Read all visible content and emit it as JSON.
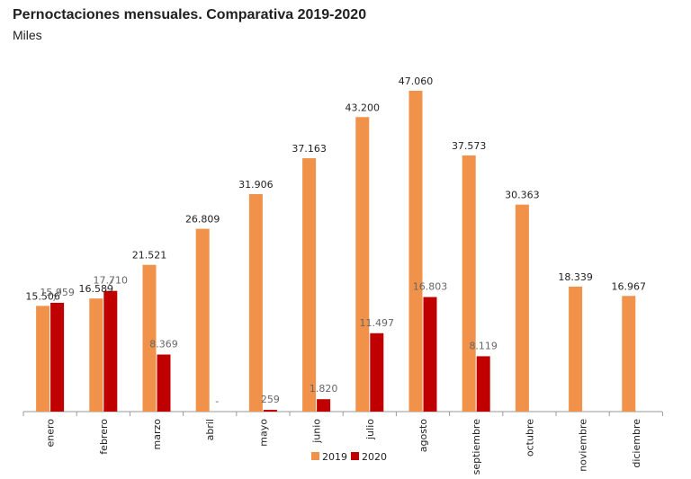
{
  "chart_data": {
    "type": "bar",
    "title": "Pernoctaciones mensuales. Comparativa 2019-2020",
    "subtitle": "Miles",
    "categories": [
      "enero",
      "febrero",
      "marzo",
      "abril",
      "mayo",
      "junio",
      "julio",
      "agosto",
      "septiembre",
      "octubre",
      "noviembre",
      "diciembre"
    ],
    "series": [
      {
        "name": "2019",
        "color": "#F0924A",
        "values": [
          15506,
          16589,
          21521,
          26809,
          31906,
          37163,
          43200,
          47060,
          37573,
          30363,
          18339,
          16967
        ],
        "labels": [
          "15.506",
          "16.589",
          "21.521",
          "26.809",
          "31.906",
          "37.163",
          "43.200",
          "47.060",
          "37.573",
          "30.363",
          "18.339",
          "16.967"
        ]
      },
      {
        "name": "2020",
        "color": "#C00000",
        "values": [
          15959,
          17710,
          8369,
          0,
          259,
          1820,
          11497,
          16803,
          8119,
          null,
          null,
          null
        ],
        "labels": [
          "15.959",
          "17.710",
          "8.369",
          "-",
          "259",
          "1.820",
          "11.497",
          "16.803",
          "8.119",
          "",
          "",
          ""
        ]
      }
    ],
    "ylim": [
      0,
      47060
    ],
    "legend_position": "bottom"
  }
}
